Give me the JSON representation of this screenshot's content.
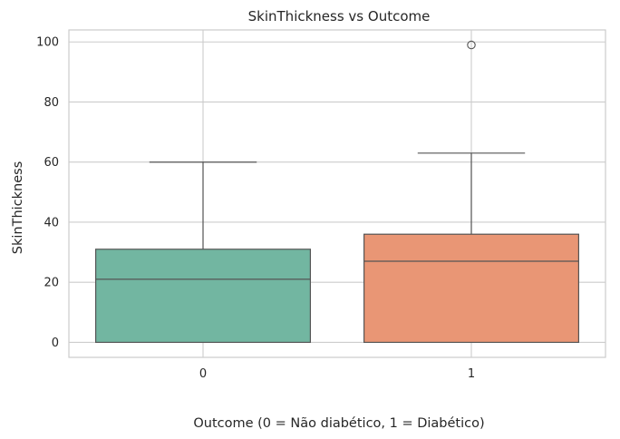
{
  "chart_data": {
    "type": "box",
    "title": "SkinThickness vs Outcome",
    "xlabel": "Outcome (0 = Não diabético, 1 = Diabético)",
    "ylabel": "SkinThickness",
    "categories": [
      "0",
      "1"
    ],
    "ylim": [
      -5,
      104
    ],
    "yticks": [
      0,
      20,
      40,
      60,
      80,
      100
    ],
    "grid": true,
    "boxes": [
      {
        "category": "0",
        "whisker_low": 0,
        "q1": 0,
        "median": 21,
        "q3": 31,
        "whisker_high": 60,
        "outliers": [],
        "color": "#72b6a1"
      },
      {
        "category": "1",
        "whisker_low": 0,
        "q1": 0,
        "median": 27,
        "q3": 36,
        "whisker_high": 63,
        "outliers": [
          99
        ],
        "color": "#e99675"
      }
    ]
  }
}
